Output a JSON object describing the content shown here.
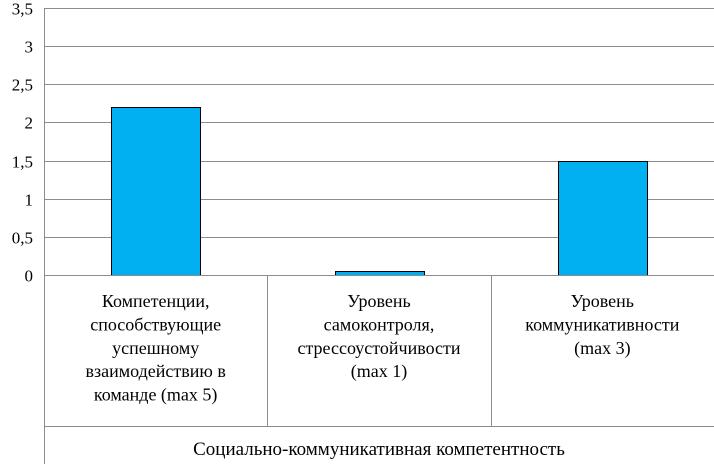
{
  "chart_data": {
    "type": "bar",
    "categories": [
      [
        "Компетенции,",
        "способствующие",
        "успешному",
        "взаимодействию в",
        "команде (max 5)"
      ],
      [
        "Уровень",
        "самоконтроля,",
        "стрессоустойчивости",
        "(max 1)"
      ],
      [
        "Уровень",
        "коммуникативности",
        "(max 3)"
      ]
    ],
    "values": [
      2.2,
      0.05,
      1.5
    ],
    "group_label": "Социально-коммуникативная компетентность",
    "yticks": [
      "0",
      "0,5",
      "1",
      "1,5",
      "2",
      "2,5",
      "3",
      "3,5"
    ],
    "ylim": [
      0,
      3.5
    ],
    "grid": true,
    "legend": "none",
    "bar_color": "#00b0f0"
  }
}
